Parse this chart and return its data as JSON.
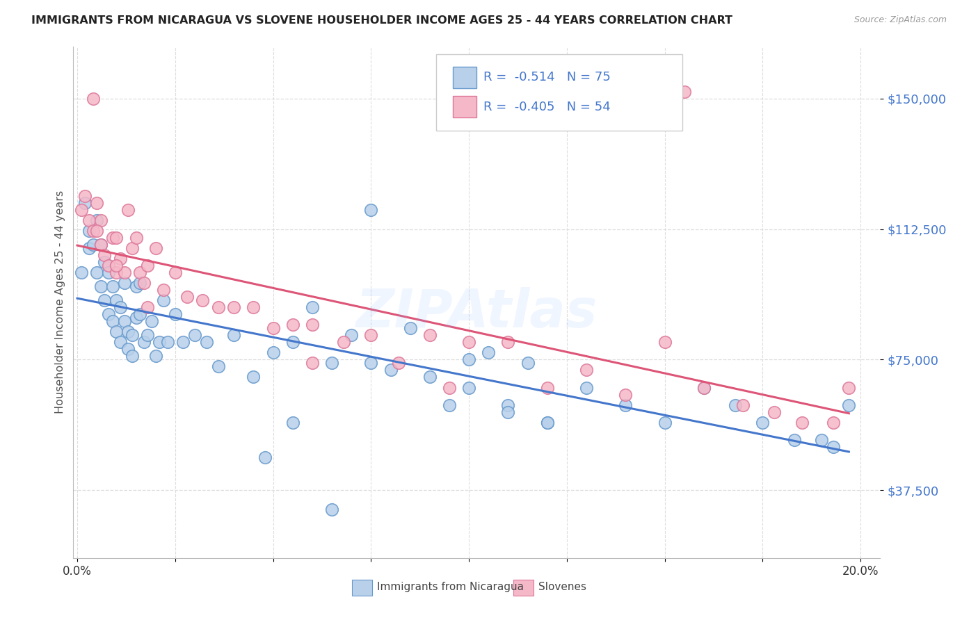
{
  "title": "IMMIGRANTS FROM NICARAGUA VS SLOVENE HOUSEHOLDER INCOME AGES 25 - 44 YEARS CORRELATION CHART",
  "source": "Source: ZipAtlas.com",
  "ylabel": "Householder Income Ages 25 - 44 years",
  "ytick_values": [
    37500,
    75000,
    112500,
    150000
  ],
  "ytick_labels": [
    "$37,500",
    "$75,000",
    "$112,500",
    "$150,000"
  ],
  "ylim": [
    18000,
    165000
  ],
  "xlim": [
    -0.001,
    0.205
  ],
  "legend_label1": "Immigrants from Nicaragua",
  "legend_label2": "Slovenes",
  "r1": "-0.514",
  "n1": "75",
  "r2": "-0.405",
  "n2": "54",
  "blue_fill": "#b8d0ea",
  "pink_fill": "#f5b8c8",
  "blue_edge": "#6699cc",
  "pink_edge": "#dd7799",
  "blue_line": "#4477cc",
  "pink_line": "#dd5577",
  "title_color": "#222222",
  "ytick_color": "#4477cc",
  "grid_color": "#dddddd",
  "nicaragua_x": [
    0.001,
    0.002,
    0.003,
    0.003,
    0.004,
    0.005,
    0.005,
    0.006,
    0.006,
    0.007,
    0.007,
    0.008,
    0.008,
    0.009,
    0.009,
    0.01,
    0.01,
    0.011,
    0.011,
    0.012,
    0.012,
    0.013,
    0.013,
    0.014,
    0.014,
    0.015,
    0.015,
    0.016,
    0.016,
    0.017,
    0.018,
    0.019,
    0.02,
    0.021,
    0.022,
    0.023,
    0.025,
    0.027,
    0.03,
    0.033,
    0.036,
    0.04,
    0.045,
    0.05,
    0.055,
    0.06,
    0.065,
    0.07,
    0.075,
    0.08,
    0.085,
    0.09,
    0.095,
    0.1,
    0.105,
    0.11,
    0.115,
    0.12,
    0.13,
    0.14,
    0.15,
    0.16,
    0.168,
    0.175,
    0.183,
    0.19,
    0.193,
    0.197,
    0.055,
    0.1,
    0.11,
    0.12,
    0.048,
    0.065,
    0.075
  ],
  "nicaragua_y": [
    100000,
    120000,
    112000,
    107000,
    108000,
    115000,
    100000,
    108000,
    96000,
    103000,
    92000,
    100000,
    88000,
    96000,
    86000,
    92000,
    83000,
    90000,
    80000,
    86000,
    97000,
    83000,
    78000,
    82000,
    76000,
    96000,
    87000,
    97000,
    88000,
    80000,
    82000,
    86000,
    76000,
    80000,
    92000,
    80000,
    88000,
    80000,
    82000,
    80000,
    73000,
    82000,
    70000,
    77000,
    80000,
    90000,
    74000,
    82000,
    74000,
    72000,
    84000,
    70000,
    62000,
    67000,
    77000,
    62000,
    74000,
    57000,
    67000,
    62000,
    57000,
    67000,
    62000,
    57000,
    52000,
    52000,
    50000,
    62000,
    57000,
    75000,
    60000,
    57000,
    47000,
    32000,
    118000
  ],
  "slovene_x": [
    0.001,
    0.002,
    0.003,
    0.004,
    0.004,
    0.005,
    0.006,
    0.006,
    0.007,
    0.008,
    0.009,
    0.01,
    0.01,
    0.011,
    0.012,
    0.013,
    0.014,
    0.015,
    0.016,
    0.017,
    0.018,
    0.02,
    0.022,
    0.025,
    0.028,
    0.032,
    0.036,
    0.04,
    0.045,
    0.05,
    0.055,
    0.06,
    0.068,
    0.075,
    0.082,
    0.09,
    0.1,
    0.11,
    0.12,
    0.13,
    0.14,
    0.15,
    0.16,
    0.17,
    0.178,
    0.185,
    0.193,
    0.197,
    0.005,
    0.01,
    0.018,
    0.06,
    0.095,
    0.155
  ],
  "slovene_y": [
    118000,
    122000,
    115000,
    112000,
    150000,
    120000,
    115000,
    108000,
    105000,
    102000,
    110000,
    110000,
    100000,
    104000,
    100000,
    118000,
    107000,
    110000,
    100000,
    97000,
    102000,
    107000,
    95000,
    100000,
    93000,
    92000,
    90000,
    90000,
    90000,
    84000,
    85000,
    85000,
    80000,
    82000,
    74000,
    82000,
    80000,
    80000,
    67000,
    72000,
    65000,
    80000,
    67000,
    62000,
    60000,
    57000,
    57000,
    67000,
    112000,
    102000,
    90000,
    74000,
    67000,
    152000
  ]
}
